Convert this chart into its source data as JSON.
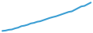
{
  "line_color": "#3d9fd4",
  "line_width": 1.5,
  "background_color": "#ffffff",
  "x": [
    0,
    1,
    2,
    3,
    4,
    5,
    6,
    7,
    8,
    9,
    10,
    11,
    12,
    13,
    14,
    15,
    16,
    17,
    18,
    19,
    20,
    21,
    22,
    23,
    24,
    25,
    26,
    27,
    28
  ],
  "y": [
    0.2,
    0.5,
    1.2,
    1.5,
    2.5,
    3.2,
    4.5,
    5.0,
    5.8,
    7.0,
    7.5,
    8.5,
    9.0,
    10.0,
    11.0,
    12.0,
    12.8,
    13.5,
    14.5,
    15.5,
    16.5,
    17.5,
    18.0,
    19.5,
    21.0,
    22.5,
    23.0,
    24.5,
    26.0
  ]
}
